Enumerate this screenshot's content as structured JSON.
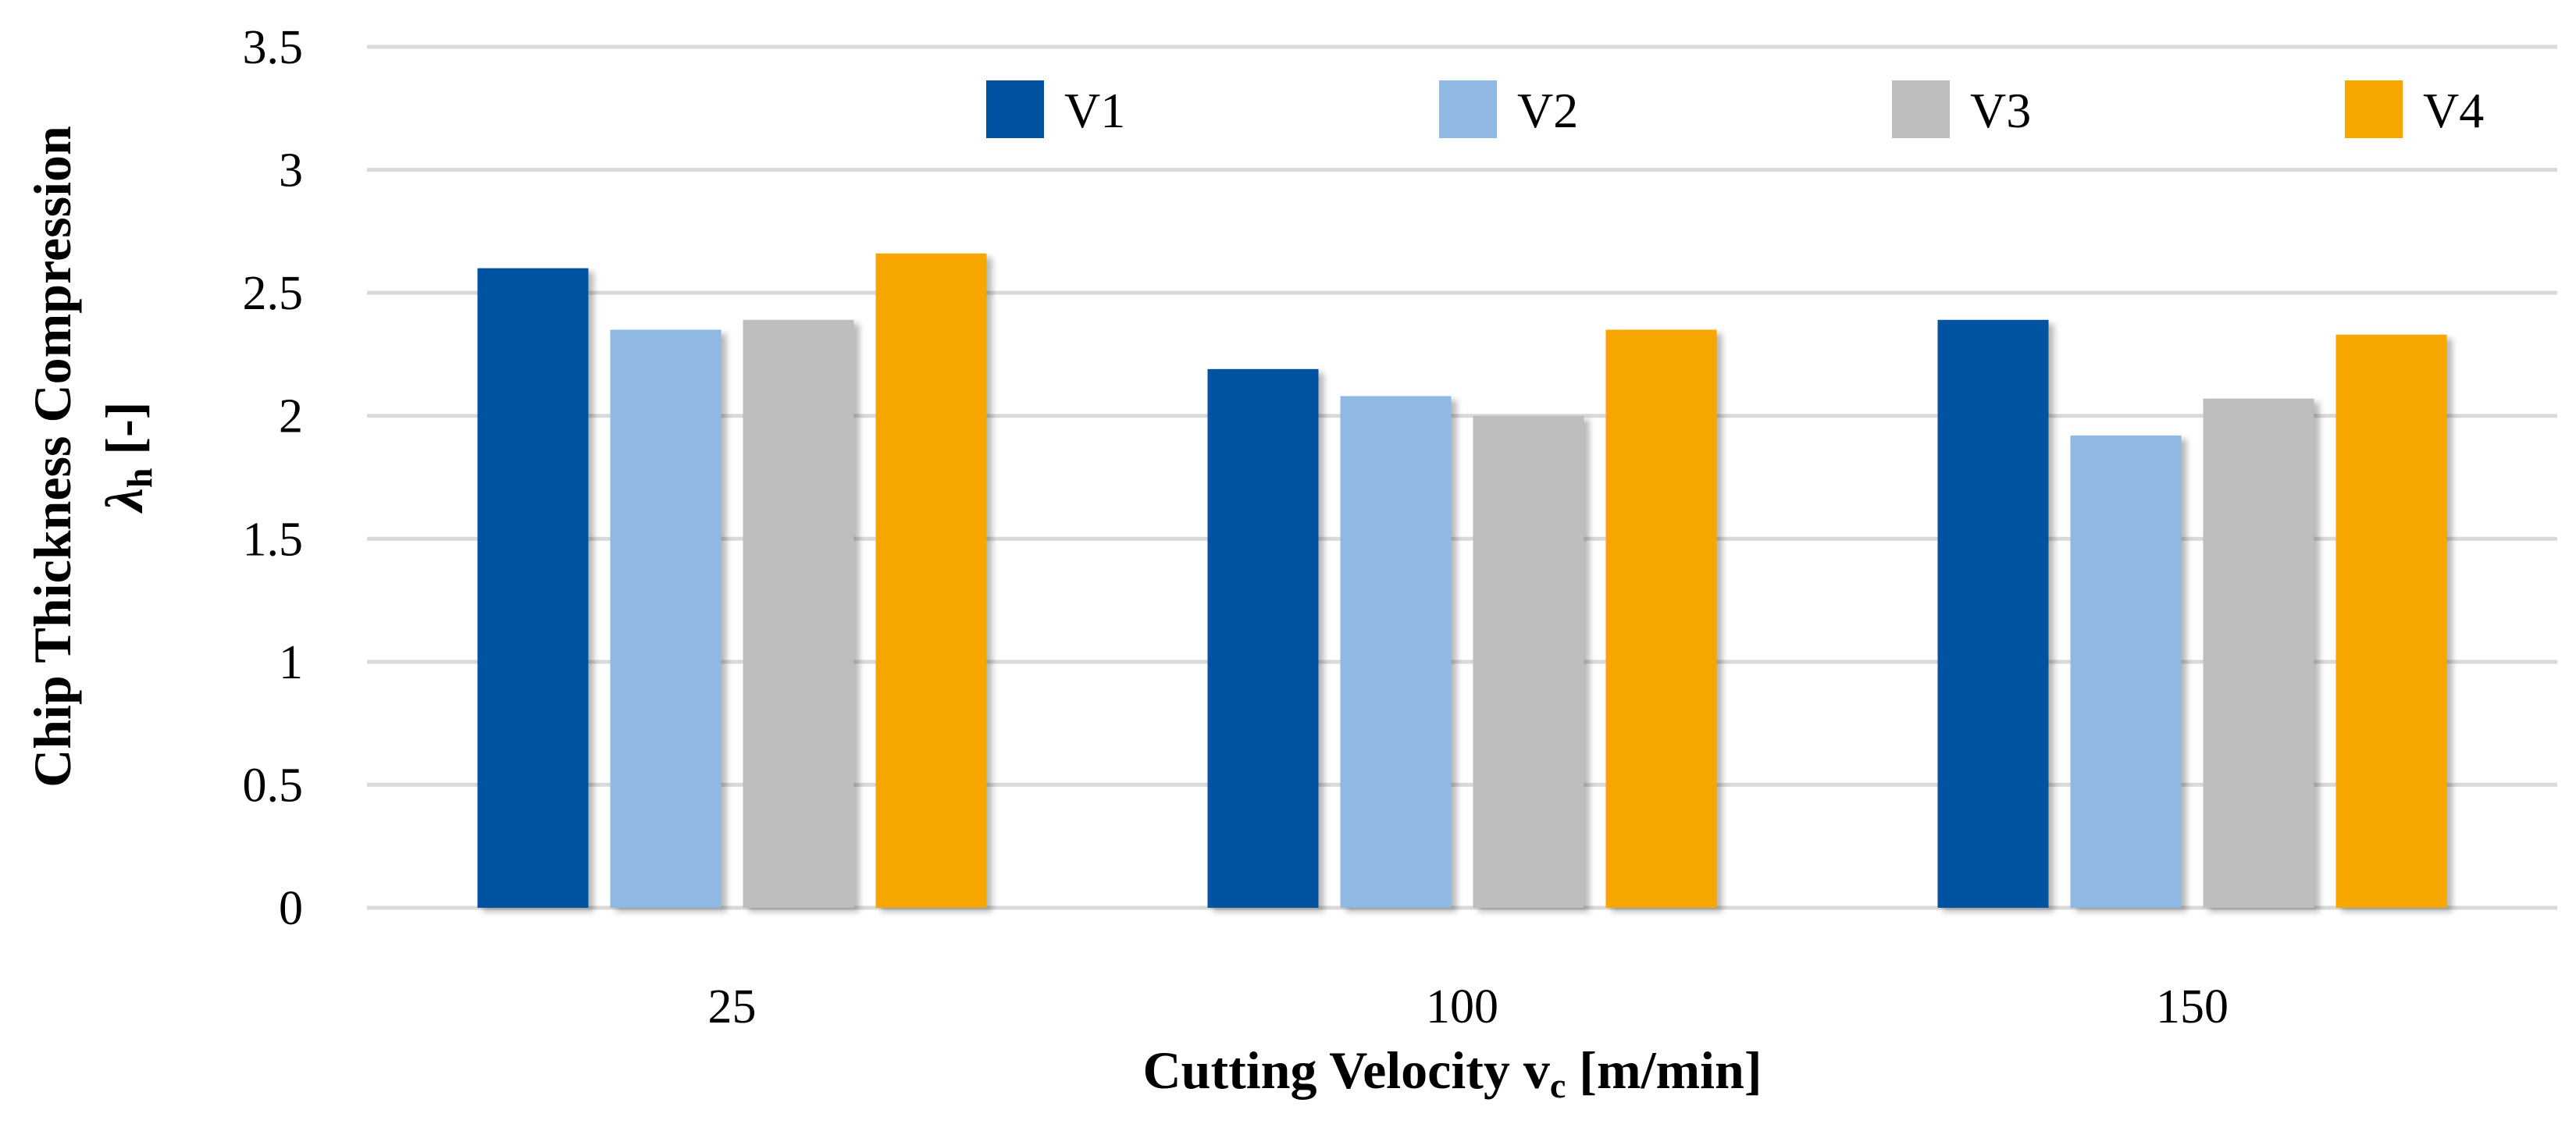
{
  "chart_data": {
    "type": "bar",
    "categories": [
      "25",
      "100",
      "150"
    ],
    "series": [
      {
        "name": "V1",
        "color": "#0052a0",
        "values": [
          2.6,
          2.19,
          2.39
        ]
      },
      {
        "name": "V2",
        "color": "#8fb8e2",
        "values": [
          2.35,
          2.08,
          1.92
        ]
      },
      {
        "name": "V3",
        "color": "#bdbdbd",
        "values": [
          2.39,
          2.0,
          2.07
        ]
      },
      {
        "name": "V4",
        "color": "#f7a600",
        "values": [
          2.66,
          2.35,
          2.33
        ]
      }
    ],
    "yticks": [
      "0",
      "0.5",
      "1",
      "1.5",
      "2",
      "2.5",
      "3",
      "3.5"
    ],
    "ylim": [
      0,
      3.5
    ],
    "xlabel": {
      "main": "Cutting Velocity v",
      "sub": "c",
      "unit": " [m/min]"
    },
    "ylabel": {
      "line1": "Chip Thickness Compression",
      "symbol": "λ",
      "sub": "h",
      "unit": " [-]"
    },
    "grid": true,
    "legend_position": "top"
  }
}
